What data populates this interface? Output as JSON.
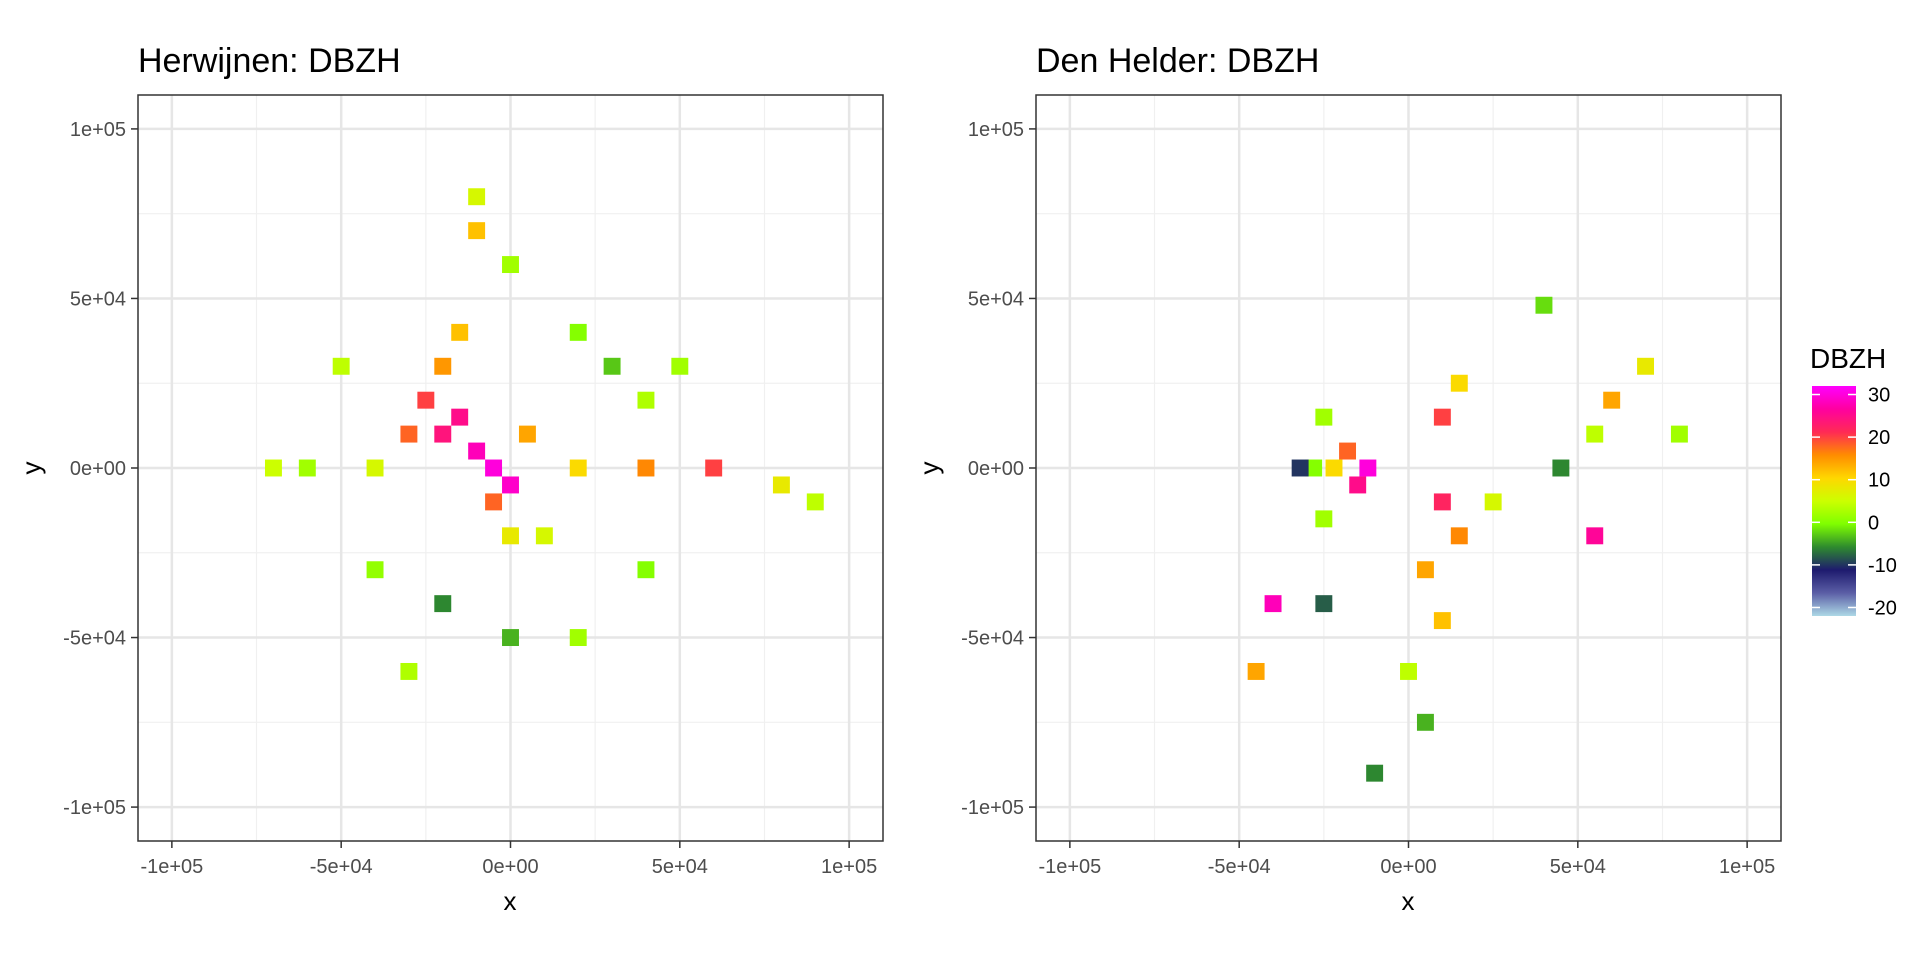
{
  "chart_data": [
    {
      "type": "heatmap",
      "title": "Herwijnen: DBZH",
      "xlabel": "x",
      "ylabel": "y",
      "xlim": [
        -110000,
        110000
      ],
      "ylim": [
        -110000,
        110000
      ],
      "xticks": [
        -100000,
        -50000,
        0,
        50000,
        100000
      ],
      "xtick_labels": [
        "-1e+05",
        "-5e+04",
        "0e+00",
        "5e+04",
        "1e+05"
      ],
      "yticks": [
        -100000,
        -50000,
        0,
        50000,
        100000
      ],
      "ytick_labels": [
        "-1e+05",
        "-5e+04",
        "0e+00",
        "5e+04",
        "1e+05"
      ],
      "grid": true,
      "cells": [
        [
          -20000,
          10000,
          24
        ],
        [
          -15000,
          15000,
          25
        ],
        [
          -10000,
          5000,
          28
        ],
        [
          -5000,
          0,
          30
        ],
        [
          0,
          -5000,
          29
        ],
        [
          -25000,
          20000,
          20
        ],
        [
          -30000,
          10000,
          18
        ],
        [
          -20000,
          30000,
          15
        ],
        [
          -15000,
          40000,
          12
        ],
        [
          5000,
          10000,
          14
        ],
        [
          20000,
          0,
          10
        ],
        [
          40000,
          0,
          16
        ],
        [
          60000,
          0,
          20
        ],
        [
          80000,
          -5000,
          8
        ],
        [
          90000,
          -10000,
          4
        ],
        [
          -40000,
          0,
          6
        ],
        [
          -60000,
          0,
          2
        ],
        [
          -70000,
          0,
          5
        ],
        [
          -10000,
          80000,
          6
        ],
        [
          -10000,
          70000,
          12
        ],
        [
          0,
          60000,
          2
        ],
        [
          20000,
          40000,
          0
        ],
        [
          30000,
          30000,
          -3
        ],
        [
          40000,
          20000,
          3
        ],
        [
          -40000,
          -30000,
          1
        ],
        [
          -20000,
          -40000,
          -6
        ],
        [
          0,
          -50000,
          -4
        ],
        [
          20000,
          -50000,
          2
        ],
        [
          40000,
          -30000,
          0
        ],
        [
          -30000,
          -60000,
          3
        ],
        [
          -50000,
          30000,
          4
        ],
        [
          50000,
          30000,
          2
        ],
        [
          0,
          -20000,
          8
        ],
        [
          -5000,
          -10000,
          18
        ],
        [
          10000,
          -20000,
          6
        ]
      ]
    },
    {
      "type": "heatmap",
      "title": "Den Helder: DBZH",
      "xlabel": "x",
      "ylabel": "y",
      "xlim": [
        -110000,
        110000
      ],
      "ylim": [
        -110000,
        110000
      ],
      "xticks": [
        -100000,
        -50000,
        0,
        50000,
        100000
      ],
      "xtick_labels": [
        "-1e+05",
        "-5e+04",
        "0e+00",
        "5e+04",
        "1e+05"
      ],
      "yticks": [
        -100000,
        -50000,
        0,
        50000,
        100000
      ],
      "ytick_labels": [
        "-1e+05",
        "-5e+04",
        "0e+00",
        "5e+04",
        "1e+05"
      ],
      "grid": true,
      "cells": [
        [
          -12000,
          0,
          30
        ],
        [
          -15000,
          -5000,
          25
        ],
        [
          -18000,
          5000,
          18
        ],
        [
          -22000,
          0,
          10
        ],
        [
          -28000,
          0,
          0
        ],
        [
          -32000,
          0,
          -10
        ],
        [
          -25000,
          15000,
          2
        ],
        [
          -25000,
          -15000,
          2
        ],
        [
          10000,
          -10000,
          22
        ],
        [
          15000,
          -20000,
          16
        ],
        [
          5000,
          -30000,
          14
        ],
        [
          10000,
          -45000,
          12
        ],
        [
          0,
          -60000,
          4
        ],
        [
          5000,
          -75000,
          -4
        ],
        [
          10000,
          15000,
          20
        ],
        [
          15000,
          25000,
          10
        ],
        [
          60000,
          20000,
          14
        ],
        [
          70000,
          30000,
          8
        ],
        [
          55000,
          10000,
          4
        ],
        [
          45000,
          0,
          -6
        ],
        [
          55000,
          -20000,
          26
        ],
        [
          80000,
          10000,
          2
        ],
        [
          40000,
          48000,
          -2
        ],
        [
          -40000,
          -40000,
          28
        ],
        [
          -25000,
          -40000,
          -8
        ],
        [
          -45000,
          -60000,
          14
        ],
        [
          -10000,
          -90000,
          -6
        ],
        [
          25000,
          -10000,
          6
        ]
      ]
    }
  ],
  "legend": {
    "title": "DBZH",
    "breaks": [
      30,
      20,
      10,
      0,
      -10,
      -20
    ],
    "labels": [
      "30",
      "20",
      "10",
      "0",
      "-10",
      "-20"
    ],
    "range": [
      -22,
      32
    ],
    "colors": [
      "#ADD8E6",
      "#5B5EA6",
      "#1E1B6E",
      "#2E8B2E",
      "#7FFF00",
      "#CCFF00",
      "#FFD700",
      "#FF8C00",
      "#FF2A55",
      "#FF00A0",
      "#FF00FF"
    ],
    "position": "right"
  }
}
